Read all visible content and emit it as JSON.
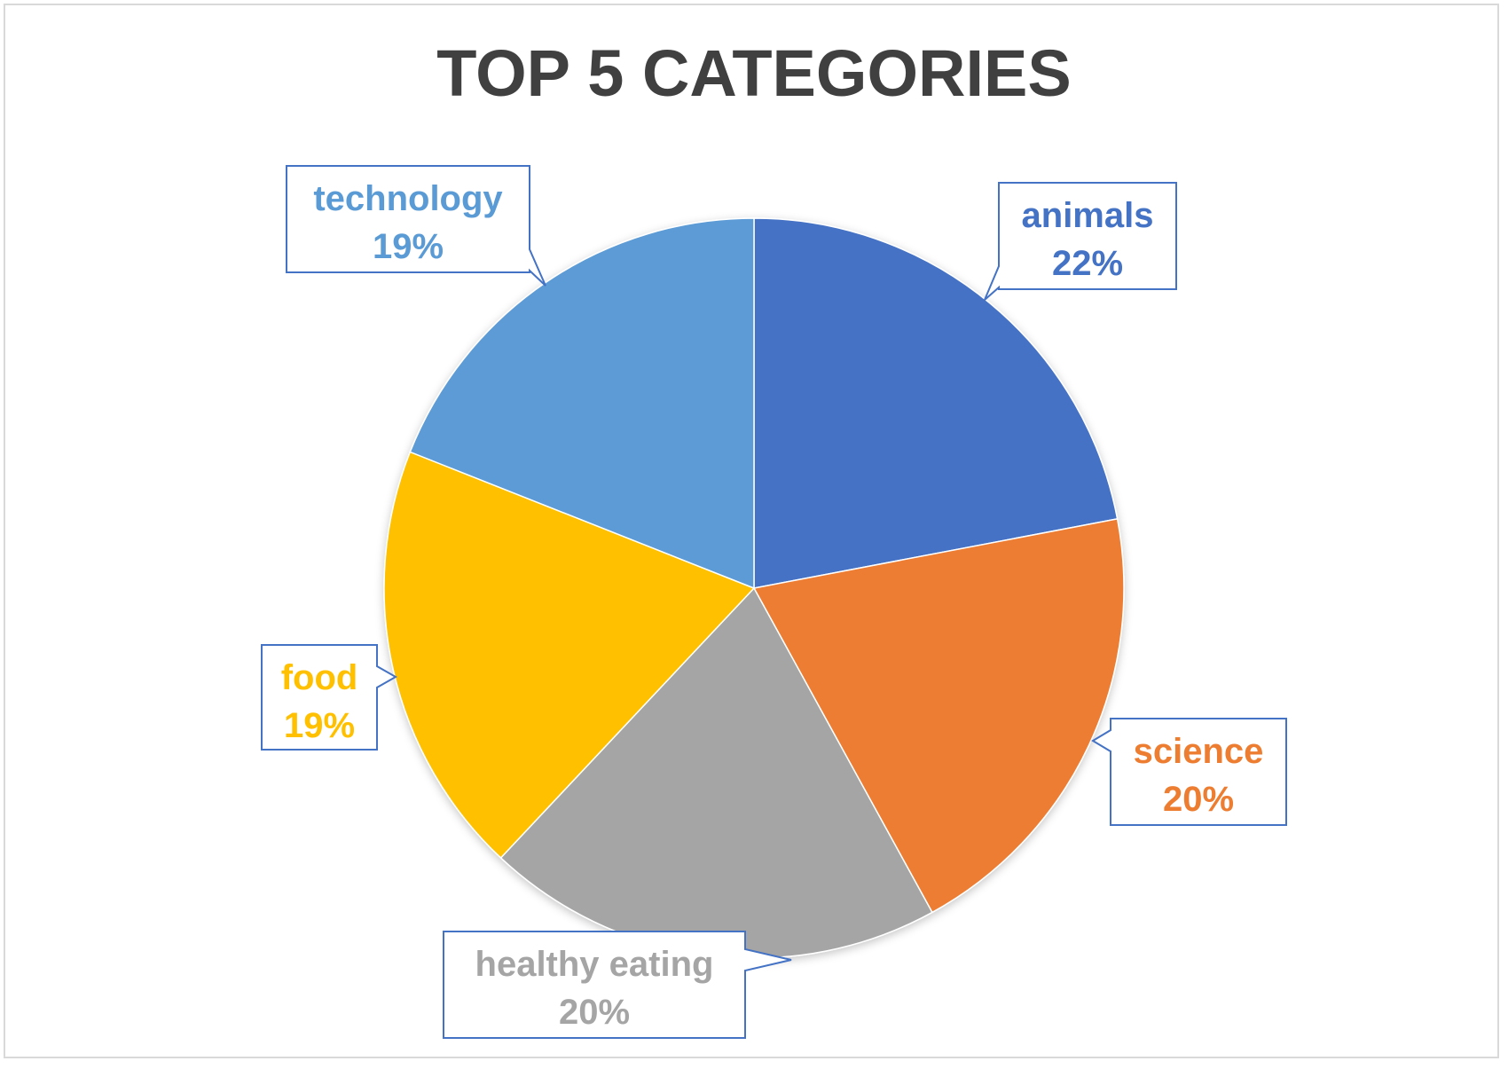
{
  "chart_data": {
    "type": "pie",
    "title": "TOP 5 CATEGORIES",
    "start_angle_deg": 0,
    "direction": "clockwise",
    "slices": [
      {
        "category": "animals",
        "value": 22,
        "label": "22%",
        "color": "#4472C4"
      },
      {
        "category": "science",
        "value": 20,
        "label": "20%",
        "color": "#ED7D31"
      },
      {
        "category": "healthy eating",
        "value": 20,
        "label": "20%",
        "color": "#A5A5A5"
      },
      {
        "category": "food",
        "value": 19,
        "label": "19%",
        "color": "#FFC000"
      },
      {
        "category": "technology",
        "value": 19,
        "label": "19%",
        "color": "#5B9BD5"
      }
    ],
    "callout_border_color": "#4472C4"
  }
}
